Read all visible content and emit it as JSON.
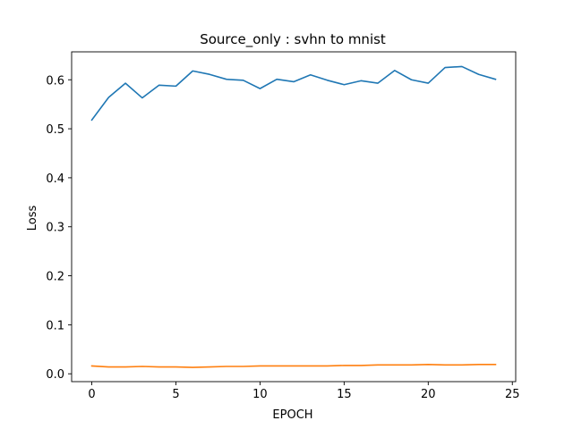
{
  "chart_data": {
    "type": "line",
    "title": "Source_only : svhn to mnist",
    "xlabel": "EPOCH",
    "ylabel": "Loss",
    "xlim": [
      -1.2,
      25.2
    ],
    "ylim": [
      -0.016,
      0.657
    ],
    "xticks": [
      0,
      5,
      10,
      15,
      20,
      25
    ],
    "yticks": [
      0.0,
      0.1,
      0.2,
      0.3,
      0.4,
      0.5,
      0.6
    ],
    "ytick_labels": [
      "0.0",
      "0.1",
      "0.2",
      "0.3",
      "0.4",
      "0.5",
      "0.6"
    ],
    "grid": false,
    "x": [
      0,
      1,
      2,
      3,
      4,
      5,
      6,
      7,
      8,
      9,
      10,
      11,
      12,
      13,
      14,
      15,
      16,
      17,
      18,
      19,
      20,
      21,
      22,
      23,
      24
    ],
    "series": [
      {
        "color": "#1f77b4",
        "values": [
          0.518,
          0.564,
          0.593,
          0.563,
          0.589,
          0.587,
          0.618,
          0.611,
          0.601,
          0.599,
          0.582,
          0.601,
          0.596,
          0.61,
          0.599,
          0.59,
          0.598,
          0.593,
          0.619,
          0.6,
          0.593,
          0.625,
          0.627,
          0.611,
          0.601
        ]
      },
      {
        "color": "#ff7f0e",
        "values": [
          0.016,
          0.014,
          0.014,
          0.015,
          0.014,
          0.014,
          0.013,
          0.014,
          0.015,
          0.015,
          0.016,
          0.016,
          0.016,
          0.016,
          0.016,
          0.017,
          0.017,
          0.018,
          0.018,
          0.018,
          0.019,
          0.018,
          0.018,
          0.019,
          0.019
        ]
      }
    ]
  }
}
